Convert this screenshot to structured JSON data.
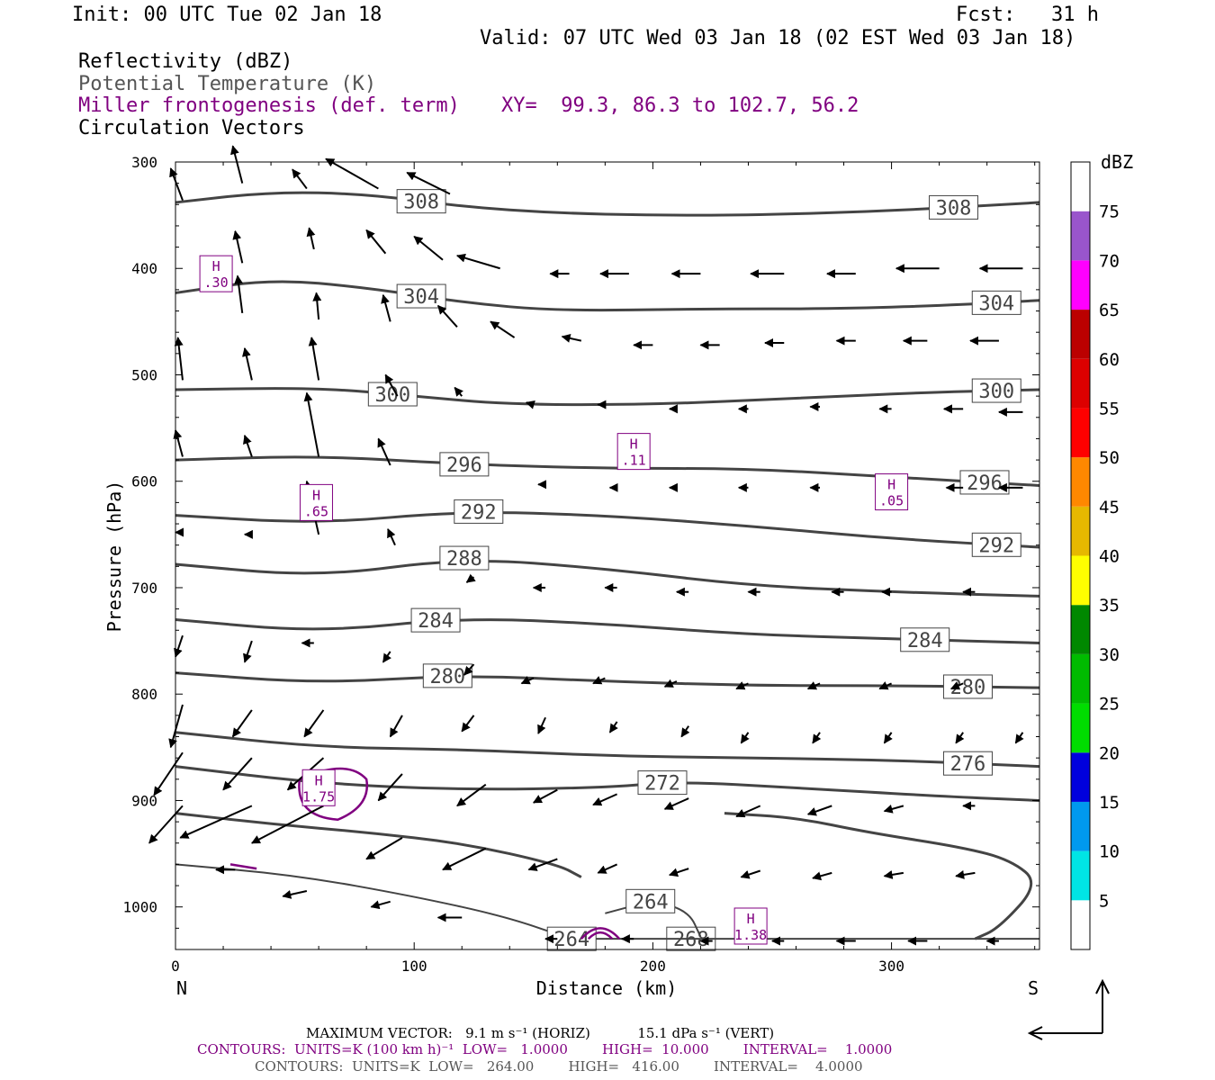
{
  "header": {
    "init": "Init: 00 UTC Tue 02 Jan 18",
    "fcst": "Fcst:   31 h",
    "valid": "Valid: 07 UTC Wed 03 Jan 18 (02 EST Wed 03 Jan 18)",
    "fields": [
      {
        "text": "Reflectivity (dBZ)",
        "color": "#000000"
      },
      {
        "text": "Potential Temperature (K)",
        "color": "#555555"
      },
      {
        "text": "Miller frontogenesis (def. term)",
        "color": "#800080"
      },
      {
        "text": "Circulation Vectors",
        "color": "#000000"
      }
    ],
    "xy": "XY=  99.3, 86.3 to 102.7, 56.2"
  },
  "chart_data": {
    "type": "cross-section",
    "xlabel": "Distance (km)",
    "ylabel": "Pressure (hPa)",
    "xlim": [
      0,
      362
    ],
    "ylim": [
      1040,
      300
    ],
    "xticks": [
      0,
      100,
      200,
      300
    ],
    "yticks": [
      300,
      400,
      500,
      600,
      700,
      800,
      900,
      1000
    ],
    "x_end_labels": {
      "left": "N",
      "right": "S"
    },
    "theta_contours": [
      {
        "value": 308,
        "points": [
          [
            0,
            338
          ],
          [
            40,
            328
          ],
          [
            80,
            330
          ],
          [
            120,
            342
          ],
          [
            160,
            348
          ],
          [
            200,
            350
          ],
          [
            240,
            350
          ],
          [
            300,
            346
          ],
          [
            362,
            338
          ]
        ],
        "label_x": [
          103,
          326
        ]
      },
      {
        "value": 304,
        "points": [
          [
            0,
            423
          ],
          [
            40,
            410
          ],
          [
            80,
            418
          ],
          [
            120,
            432
          ],
          [
            160,
            440
          ],
          [
            220,
            438
          ],
          [
            280,
            438
          ],
          [
            330,
            434
          ],
          [
            362,
            430
          ]
        ],
        "label_x": [
          103,
          344
        ]
      },
      {
        "value": 300,
        "points": [
          [
            0,
            514
          ],
          [
            60,
            512
          ],
          [
            100,
            520
          ],
          [
            140,
            528
          ],
          [
            200,
            528
          ],
          [
            260,
            522
          ],
          [
            320,
            516
          ],
          [
            362,
            514
          ]
        ],
        "label_x": [
          91,
          344
        ]
      },
      {
        "value": 296,
        "points": [
          [
            0,
            580
          ],
          [
            60,
            576
          ],
          [
            120,
            584
          ],
          [
            180,
            588
          ],
          [
            240,
            588
          ],
          [
            300,
            596
          ],
          [
            362,
            604
          ]
        ],
        "label_x": [
          121,
          339
        ]
      },
      {
        "value": 292,
        "points": [
          [
            0,
            632
          ],
          [
            60,
            640
          ],
          [
            120,
            628
          ],
          [
            180,
            632
          ],
          [
            240,
            642
          ],
          [
            300,
            654
          ],
          [
            362,
            662
          ]
        ],
        "label_x": [
          127,
          344
        ]
      },
      {
        "value": 288,
        "points": [
          [
            0,
            678
          ],
          [
            60,
            690
          ],
          [
            120,
            672
          ],
          [
            180,
            682
          ],
          [
            240,
            698
          ],
          [
            300,
            704
          ],
          [
            362,
            708
          ]
        ],
        "label_x": [
          121
        ]
      },
      {
        "value": 284,
        "points": [
          [
            0,
            730
          ],
          [
            60,
            742
          ],
          [
            120,
            728
          ],
          [
            180,
            734
          ],
          [
            240,
            744
          ],
          [
            300,
            748
          ],
          [
            362,
            752
          ]
        ],
        "label_x": [
          109,
          314
        ]
      },
      {
        "value": 280,
        "points": [
          [
            0,
            780
          ],
          [
            60,
            790
          ],
          [
            120,
            782
          ],
          [
            180,
            788
          ],
          [
            240,
            792
          ],
          [
            300,
            792
          ],
          [
            362,
            794
          ]
        ],
        "label_x": [
          114,
          332
        ]
      },
      {
        "value": 276,
        "points": [
          [
            0,
            836
          ],
          [
            60,
            850
          ],
          [
            120,
            852
          ],
          [
            180,
            858
          ],
          [
            240,
            860
          ],
          [
            300,
            862
          ],
          [
            362,
            868
          ]
        ],
        "label_x": [
          332
        ]
      },
      {
        "value": 272,
        "points": [
          [
            0,
            868
          ],
          [
            60,
            884
          ],
          [
            120,
            890
          ],
          [
            180,
            888
          ],
          [
            210,
            882
          ],
          [
            260,
            888
          ],
          [
            320,
            896
          ],
          [
            362,
            900
          ]
        ],
        "label_x": [
          204
        ]
      },
      {
        "value": 268,
        "points": [
          [
            0,
            912
          ],
          [
            40,
            922
          ],
          [
            80,
            930
          ],
          [
            120,
            940
          ],
          [
            160,
            960
          ],
          [
            170,
            972
          ]
        ],
        "label_x": []
      },
      {
        "value": 268,
        "points": [
          [
            230,
            912
          ],
          [
            260,
            916
          ],
          [
            290,
            930
          ],
          [
            330,
            944
          ],
          [
            350,
            956
          ],
          [
            362,
            978
          ],
          [
            345,
            1020
          ],
          [
            335,
            1030
          ]
        ],
        "label_x": [
          216
        ]
      },
      {
        "value": 264,
        "points": [
          [
            0,
            960
          ],
          [
            50,
            970
          ],
          [
            100,
            990
          ],
          [
            140,
            1010
          ],
          [
            165,
            1030
          ],
          [
            180,
            1030
          ],
          [
            362,
            1030
          ]
        ],
        "label_x": [
          166
        ]
      },
      {
        "value": 264,
        "points": [
          [
            180,
            1006
          ],
          [
            200,
            994
          ],
          [
            215,
            1004
          ],
          [
            220,
            1028
          ]
        ],
        "label_x": [
          199
        ]
      }
    ],
    "frontogenesis_maxima": [
      {
        "label": "H",
        "value": ".30",
        "x": 17,
        "p": 405
      },
      {
        "label": "H",
        "value": ".65",
        "x": 59,
        "p": 620
      },
      {
        "label": "H",
        "value": ".11",
        "x": 192,
        "p": 572
      },
      {
        "label": "H",
        "value": ".05",
        "x": 300,
        "p": 610
      },
      {
        "label": "H",
        "value": "1.75",
        "x": 60,
        "p": 888
      },
      {
        "label": "H",
        "value": "1.38",
        "x": 241,
        "p": 1018
      }
    ],
    "vectors_km_hpa": [
      [
        3,
        336,
        -5,
        -30
      ],
      [
        28,
        320,
        -4,
        -35
      ],
      [
        55,
        325,
        -6,
        -18
      ],
      [
        85,
        325,
        -22,
        -28
      ],
      [
        115,
        330,
        -18,
        -20
      ],
      [
        28,
        395,
        -3,
        -30
      ],
      [
        58,
        382,
        -2,
        -20
      ],
      [
        88,
        386,
        -8,
        -22
      ],
      [
        112,
        392,
        -12,
        -22
      ],
      [
        136,
        400,
        -18,
        -12
      ],
      [
        165,
        405,
        -8,
        0
      ],
      [
        190,
        405,
        -12,
        0
      ],
      [
        220,
        405,
        -12,
        0
      ],
      [
        255,
        405,
        -14,
        0
      ],
      [
        285,
        405,
        -12,
        0
      ],
      [
        320,
        400,
        -18,
        0
      ],
      [
        355,
        400,
        -18,
        0
      ],
      [
        28,
        442,
        -2,
        -35
      ],
      [
        60,
        448,
        -1,
        -25
      ],
      [
        90,
        450,
        -3,
        -25
      ],
      [
        118,
        455,
        -8,
        -20
      ],
      [
        142,
        465,
        -10,
        -15
      ],
      [
        170,
        468,
        -8,
        -4
      ],
      [
        200,
        472,
        -8,
        0
      ],
      [
        228,
        472,
        -8,
        0
      ],
      [
        255,
        470,
        -8,
        0
      ],
      [
        285,
        468,
        -8,
        0
      ],
      [
        315,
        468,
        -10,
        0
      ],
      [
        345,
        468,
        -12,
        0
      ],
      [
        3,
        505,
        -2,
        -40
      ],
      [
        32,
        505,
        -3,
        -30
      ],
      [
        60,
        505,
        -3,
        -40
      ],
      [
        93,
        520,
        -5,
        -20
      ],
      [
        120,
        520,
        -3,
        -8
      ],
      [
        150,
        528,
        -3,
        -2
      ],
      [
        180,
        528,
        -3,
        0
      ],
      [
        210,
        532,
        -3,
        0
      ],
      [
        240,
        532,
        -4,
        0
      ],
      [
        270,
        530,
        -4,
        0
      ],
      [
        300,
        532,
        -5,
        0
      ],
      [
        330,
        532,
        -8,
        0
      ],
      [
        355,
        535,
        -10,
        0
      ],
      [
        3,
        577,
        -3,
        -25
      ],
      [
        32,
        577,
        -3,
        -20
      ],
      [
        60,
        577,
        -5,
        -60
      ],
      [
        90,
        585,
        -5,
        -25
      ],
      [
        155,
        603,
        -3,
        0
      ],
      [
        185,
        606,
        -3,
        0
      ],
      [
        210,
        606,
        -3,
        0
      ],
      [
        240,
        606,
        -4,
        0
      ],
      [
        270,
        606,
        -4,
        0
      ],
      [
        300,
        606,
        -5,
        0
      ],
      [
        330,
        606,
        -7,
        0
      ],
      [
        355,
        606,
        -10,
        0
      ],
      [
        3,
        648,
        -3,
        0
      ],
      [
        32,
        650,
        -3,
        0
      ],
      [
        60,
        650,
        -5,
        -50
      ],
      [
        92,
        660,
        -3,
        -15
      ],
      [
        125,
        690,
        -3,
        5
      ],
      [
        155,
        700,
        -5,
        0
      ],
      [
        185,
        700,
        -5,
        0
      ],
      [
        215,
        704,
        -5,
        0
      ],
      [
        245,
        704,
        -5,
        0
      ],
      [
        280,
        704,
        -5,
        0
      ],
      [
        300,
        704,
        -4,
        0
      ],
      [
        335,
        704,
        -5,
        0
      ],
      [
        3,
        745,
        -3,
        20
      ],
      [
        32,
        750,
        -3,
        20
      ],
      [
        58,
        752,
        -5,
        0
      ],
      [
        90,
        760,
        -3,
        10
      ],
      [
        125,
        772,
        -4,
        10
      ],
      [
        150,
        785,
        -5,
        5
      ],
      [
        180,
        785,
        -5,
        5
      ],
      [
        210,
        788,
        -5,
        5
      ],
      [
        240,
        790,
        -5,
        5
      ],
      [
        270,
        790,
        -5,
        5
      ],
      [
        300,
        790,
        -5,
        5
      ],
      [
        330,
        790,
        -5,
        5
      ],
      [
        3,
        810,
        -5,
        40
      ],
      [
        32,
        815,
        -8,
        25
      ],
      [
        62,
        815,
        -8,
        25
      ],
      [
        95,
        820,
        -5,
        20
      ],
      [
        125,
        820,
        -5,
        15
      ],
      [
        155,
        822,
        -3,
        15
      ],
      [
        185,
        826,
        -3,
        10
      ],
      [
        215,
        830,
        -3,
        10
      ],
      [
        240,
        836,
        -3,
        10
      ],
      [
        270,
        836,
        -3,
        10
      ],
      [
        300,
        836,
        -3,
        10
      ],
      [
        330,
        836,
        -3,
        10
      ],
      [
        355,
        836,
        -3,
        10
      ],
      [
        3,
        855,
        -12,
        40
      ],
      [
        32,
        860,
        -12,
        30
      ],
      [
        62,
        860,
        -15,
        30
      ],
      [
        95,
        875,
        -10,
        25
      ],
      [
        130,
        885,
        -12,
        20
      ],
      [
        160,
        890,
        -10,
        12
      ],
      [
        185,
        894,
        -10,
        10
      ],
      [
        215,
        898,
        -10,
        10
      ],
      [
        245,
        905,
        -10,
        10
      ],
      [
        275,
        905,
        -10,
        8
      ],
      [
        305,
        905,
        -8,
        5
      ],
      [
        335,
        905,
        -5,
        0
      ],
      [
        3,
        905,
        -14,
        35
      ],
      [
        32,
        905,
        -30,
        30
      ],
      [
        62,
        905,
        -30,
        35
      ],
      [
        95,
        935,
        -15,
        20
      ],
      [
        130,
        945,
        -18,
        20
      ],
      [
        160,
        955,
        -12,
        10
      ],
      [
        185,
        960,
        -8,
        8
      ],
      [
        215,
        964,
        -8,
        6
      ],
      [
        245,
        966,
        -8,
        6
      ],
      [
        275,
        968,
        -8,
        5
      ],
      [
        305,
        968,
        -8,
        3
      ],
      [
        335,
        968,
        -8,
        3
      ],
      [
        25,
        965,
        -8,
        0
      ],
      [
        55,
        985,
        -10,
        5
      ],
      [
        90,
        995,
        -8,
        5
      ],
      [
        120,
        1010,
        -10,
        0
      ],
      [
        160,
        1030,
        -5,
        0
      ],
      [
        192,
        1030,
        -5,
        0
      ],
      [
        225,
        1032,
        -5,
        0
      ],
      [
        255,
        1032,
        -5,
        0
      ],
      [
        285,
        1032,
        -8,
        0
      ],
      [
        315,
        1032,
        -8,
        0
      ],
      [
        345,
        1032,
        -5,
        0
      ]
    ],
    "colorbar": {
      "units": "dBZ",
      "levels": [
        5,
        10,
        15,
        20,
        25,
        30,
        35,
        40,
        45,
        50,
        55,
        60,
        65,
        70,
        75
      ],
      "colors": [
        "#ffffff",
        "#00e5e5",
        "#0099ee",
        "#0000dd",
        "#00dd00",
        "#00bb00",
        "#008800",
        "#ffff00",
        "#e6b800",
        "#ff8800",
        "#ff0000",
        "#dd0000",
        "#bb0000",
        "#ff00ff",
        "#9955cc",
        "#ffffff"
      ]
    }
  },
  "footer": {
    "max_vector": "MAXIMUM VECTOR:   9.1 m s⁻¹ (HORIZ)           15.1 dPa s⁻¹ (VERT)",
    "contours1": "CONTOURS:  UNITS=K (100 km h)⁻¹  LOW=   1.0000        HIGH=  10.000        INTERVAL=    1.0000",
    "contours2": "CONTOURS:  UNITS=K  LOW=   264.00        HIGH=   416.00        INTERVAL=    4.0000"
  }
}
